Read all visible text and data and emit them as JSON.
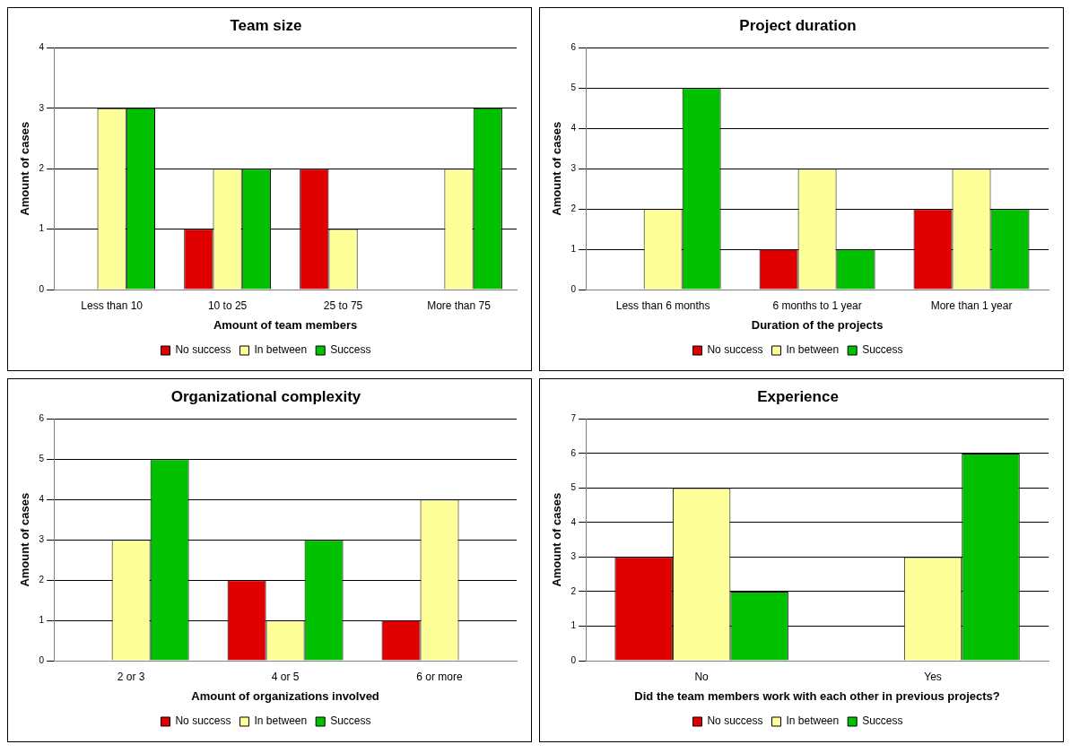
{
  "chart_data": [
    {
      "type": "bar",
      "title": "Team size",
      "xlabel": "Amount of team members",
      "ylabel": "Amount of cases",
      "categories": [
        "Less than 10",
        "10 to 25",
        "25 to 75",
        "More than 75"
      ],
      "ylim": [
        0,
        4
      ],
      "yticks": [
        0,
        1,
        2,
        3,
        4
      ],
      "grid": "y",
      "legend": "bottom",
      "series": [
        {
          "name": "No success",
          "color": "#e00000",
          "values": [
            0,
            1,
            2,
            0
          ]
        },
        {
          "name": "In between",
          "color": "#ffff99",
          "values": [
            3,
            2,
            1,
            2
          ]
        },
        {
          "name": "Success",
          "color": "#00c000",
          "values": [
            3,
            2,
            0,
            3
          ]
        }
      ]
    },
    {
      "type": "bar",
      "title": "Project duration",
      "xlabel": "Duration of the projects",
      "ylabel": "Amount of cases",
      "categories": [
        "Less than 6 months",
        "6 months to 1 year",
        "More than 1 year"
      ],
      "ylim": [
        0,
        6
      ],
      "yticks": [
        0,
        1,
        2,
        3,
        4,
        5,
        6
      ],
      "grid": "y",
      "legend": "bottom",
      "series": [
        {
          "name": "No success",
          "color": "#e00000",
          "values": [
            0,
            1,
            2
          ]
        },
        {
          "name": "In between",
          "color": "#ffff99",
          "values": [
            2,
            3,
            3
          ]
        },
        {
          "name": "Success",
          "color": "#00c000",
          "values": [
            5,
            1,
            2
          ]
        }
      ]
    },
    {
      "type": "bar",
      "title": "Organizational complexity",
      "xlabel": "Amount of organizations involved",
      "ylabel": "Amount of cases",
      "categories": [
        "2 or 3",
        "4 or 5",
        "6 or more"
      ],
      "ylim": [
        0,
        6
      ],
      "yticks": [
        0,
        1,
        2,
        3,
        4,
        5,
        6
      ],
      "grid": "y",
      "legend": "bottom",
      "series": [
        {
          "name": "No success",
          "color": "#e00000",
          "values": [
            0,
            2,
            1
          ]
        },
        {
          "name": "In between",
          "color": "#ffff99",
          "values": [
            3,
            1,
            4
          ]
        },
        {
          "name": "Success",
          "color": "#00c000",
          "values": [
            5,
            3,
            0
          ]
        }
      ]
    },
    {
      "type": "bar",
      "title": "Experience",
      "xlabel": "Did the team members work with each other in previous projects?",
      "ylabel": "Amount of cases",
      "categories": [
        "No",
        "Yes"
      ],
      "ylim": [
        0,
        7
      ],
      "yticks": [
        0,
        1,
        2,
        3,
        4,
        5,
        6,
        7
      ],
      "grid": "y",
      "legend": "bottom",
      "series": [
        {
          "name": "No success",
          "color": "#e00000",
          "values": [
            3,
            0
          ]
        },
        {
          "name": "In between",
          "color": "#ffff99",
          "values": [
            5,
            3
          ]
        },
        {
          "name": "Success",
          "color": "#00c000",
          "values": [
            2,
            6
          ]
        }
      ]
    }
  ]
}
